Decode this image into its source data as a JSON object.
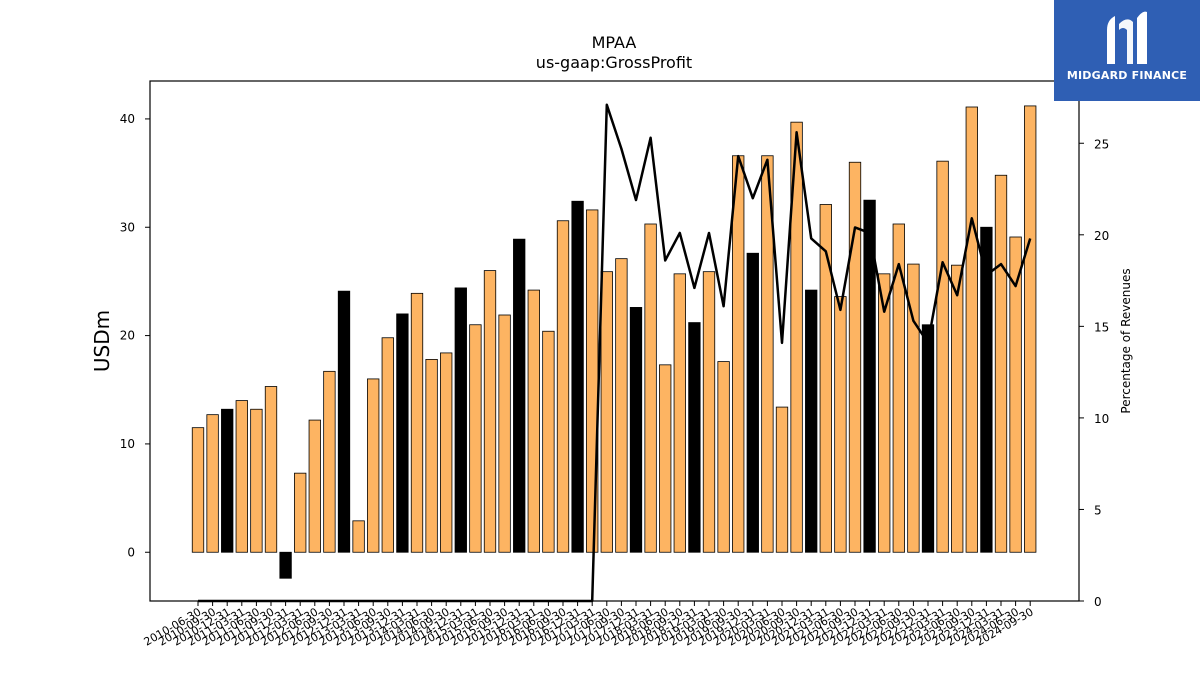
{
  "brand": {
    "name": "MIDGARD FINANCE",
    "logo_icon": "midgard-m-icon",
    "color": "#2f5fb4"
  },
  "chart_data": {
    "type": "bar",
    "title": "MPAA",
    "subtitle": "us-gaap:GrossProfit",
    "ylabel": "USDm",
    "y2label": "Percentage of Revenues",
    "ylim": [
      -4.5,
      43.5
    ],
    "y2lim": [
      0,
      28.4
    ],
    "yticks": [
      0,
      10,
      20,
      30,
      40
    ],
    "y2ticks": [
      0,
      5,
      10,
      15,
      20,
      25
    ],
    "colors": {
      "bar": "#fdb462",
      "q4_bar": "#000000",
      "line": "#000000"
    },
    "categories": [
      "2010-06-30",
      "2010-09-30",
      "2010-12-31",
      "2011-03-31",
      "2011-06-30",
      "2011-09-30",
      "2011-12-31",
      "2012-03-31",
      "2012-06-30",
      "2012-09-30",
      "2012-12-31",
      "2013-03-31",
      "2013-06-30",
      "2013-09-30",
      "2013-12-31",
      "2014-03-31",
      "2014-06-30",
      "2014-09-30",
      "2014-12-31",
      "2015-03-31",
      "2015-06-30",
      "2015-09-30",
      "2015-12-31",
      "2016-03-31",
      "2016-06-30",
      "2016-09-30",
      "2016-12-31",
      "2017-03-31",
      "2017-06-30",
      "2017-09-30",
      "2017-12-31",
      "2018-03-31",
      "2018-06-30",
      "2018-09-30",
      "2018-12-31",
      "2019-03-31",
      "2019-06-30",
      "2019-09-30",
      "2019-12-31",
      "2020-03-31",
      "2020-06-30",
      "2020-09-30",
      "2020-12-31",
      "2021-03-31",
      "2021-06-30",
      "2021-09-30",
      "2021-12-31",
      "2022-03-31",
      "2022-06-30",
      "2022-09-30",
      "2022-12-31",
      "2023-03-31",
      "2023-06-30",
      "2023-09-30",
      "2023-12-31",
      "2024-03-31",
      "2024-06-30",
      "2024-09-30"
    ],
    "series": [
      {
        "type": "bar",
        "values": [
          11.5,
          12.7,
          13.2,
          14.0,
          13.2,
          15.3,
          -2.4,
          7.3,
          12.2,
          16.7,
          24.1,
          2.9,
          16.0,
          19.8,
          22.0,
          23.9,
          17.8,
          18.4,
          24.4,
          21.0,
          26.0,
          21.9,
          28.9,
          24.2,
          20.4,
          30.6,
          32.4,
          31.6,
          25.9,
          27.1,
          22.6,
          30.3,
          17.3,
          25.7,
          21.2,
          25.9,
          17.6,
          36.6,
          27.6,
          36.6,
          13.4,
          39.7,
          24.2,
          32.1,
          23.6,
          36.0,
          32.5,
          25.7,
          30.3,
          26.6,
          21.0,
          36.1,
          26.5,
          41.1,
          30.0,
          34.8,
          29.1,
          41.2
        ],
        "q4_flags": [
          false,
          false,
          true,
          false,
          false,
          false,
          true,
          false,
          false,
          false,
          true,
          false,
          false,
          false,
          true,
          false,
          false,
          false,
          true,
          false,
          false,
          false,
          true,
          false,
          false,
          false,
          true,
          false,
          false,
          false,
          true,
          false,
          false,
          false,
          true,
          false,
          false,
          false,
          true,
          false,
          false,
          false,
          true,
          false,
          false,
          false,
          true,
          false,
          false,
          false,
          true,
          false,
          false,
          false,
          true,
          false,
          false,
          false
        ]
      },
      {
        "type": "line",
        "axis": "right",
        "values": [
          0,
          0,
          0,
          0,
          0,
          0,
          0,
          0,
          0,
          0,
          0,
          0,
          0,
          0,
          0,
          0,
          0,
          0,
          0,
          0,
          0,
          0,
          0,
          0,
          0,
          0,
          0,
          0,
          27.1,
          24.7,
          21.9,
          25.3,
          18.6,
          20.1,
          17.1,
          20.1,
          16.1,
          24.3,
          22.0,
          24.1,
          14.1,
          25.6,
          19.8,
          19.1,
          15.9,
          20.4,
          20.1,
          15.8,
          18.4,
          15.3,
          14.1,
          18.5,
          16.7,
          20.9,
          17.8,
          18.4,
          17.2,
          19.8
        ]
      }
    ]
  }
}
